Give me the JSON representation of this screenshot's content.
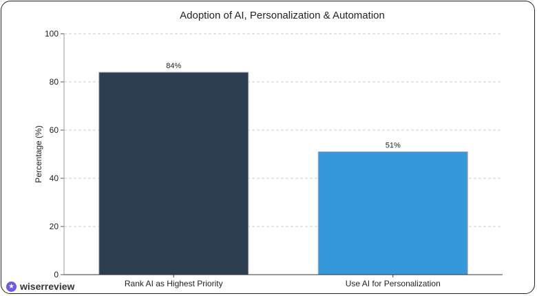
{
  "chart_data": {
    "type": "bar",
    "title": "Adoption of AI, Personalization & Automation",
    "xlabel": "",
    "ylabel": "Percentage (%)",
    "ylim": [
      0,
      100
    ],
    "yticks": [
      0,
      20,
      40,
      60,
      80,
      100
    ],
    "grid": true,
    "categories": [
      "Rank AI as Highest Priority",
      "Use AI for Personalization"
    ],
    "values": [
      84,
      51
    ],
    "data_labels": [
      "84%",
      "51%"
    ],
    "colors": [
      "#2d3e50",
      "#3498db"
    ]
  },
  "logo": {
    "text": "wiserreview",
    "icon": "star-icon",
    "color": "#6b5ce7"
  }
}
